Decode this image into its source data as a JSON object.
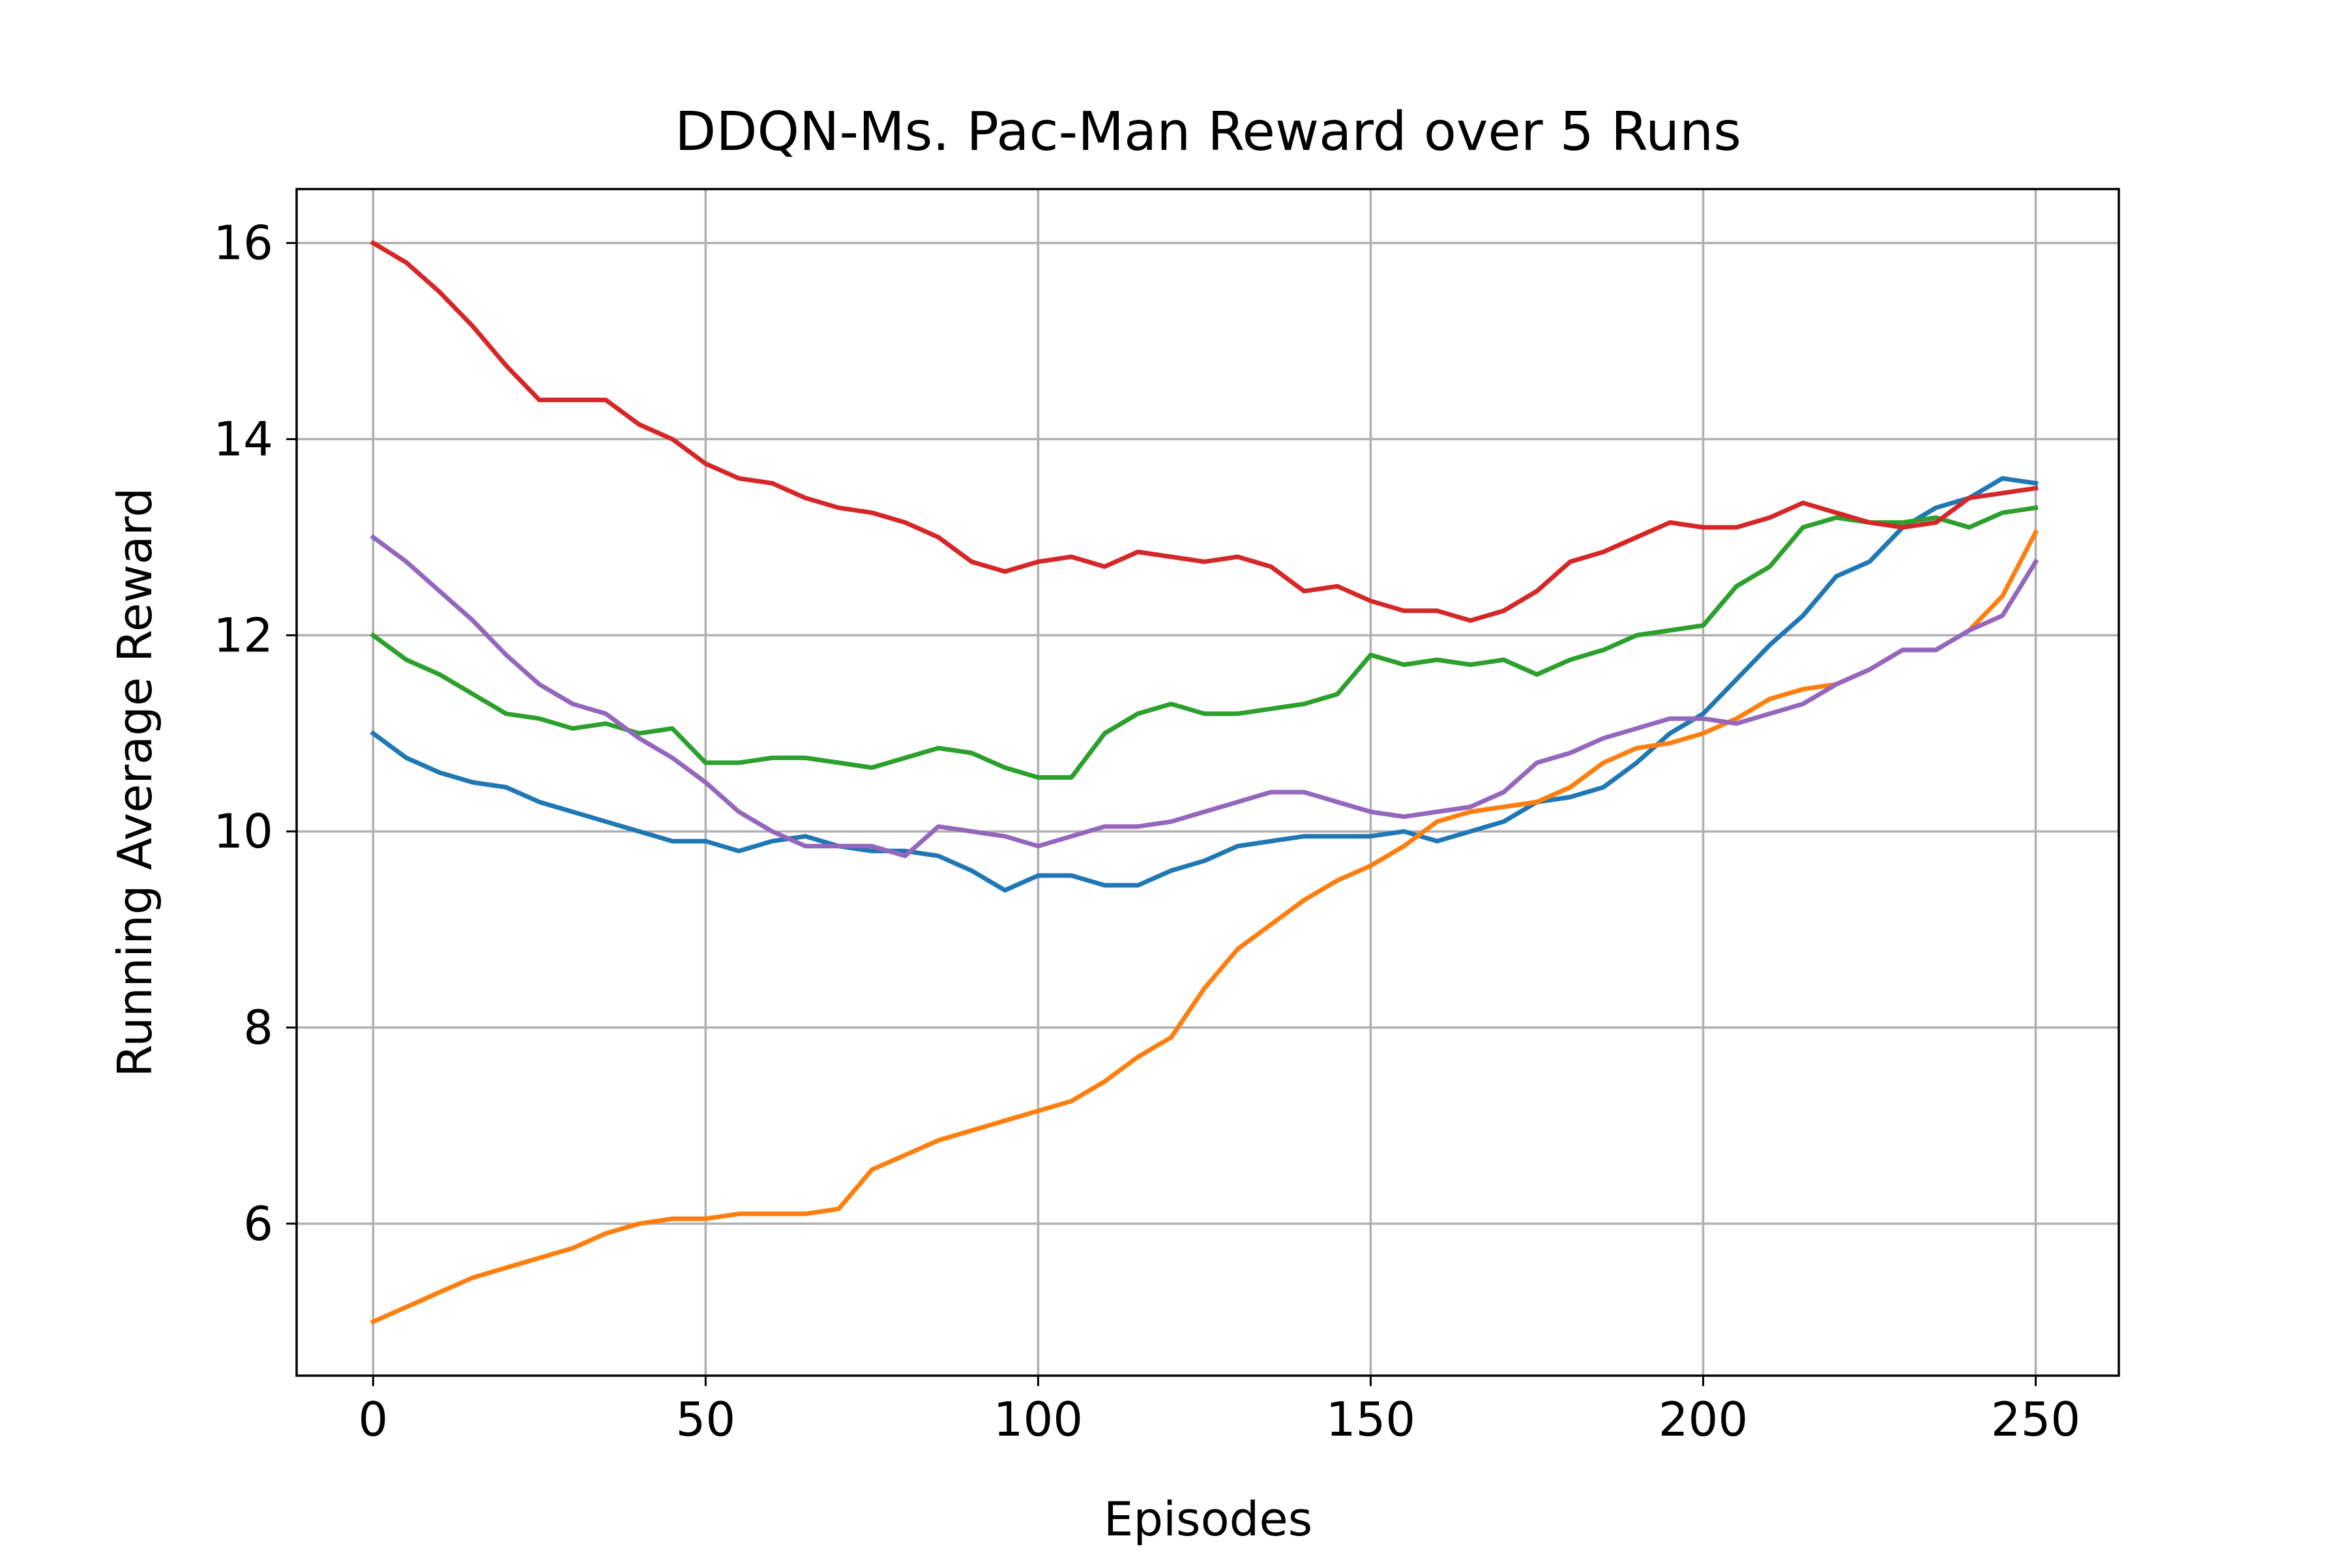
{
  "chart_data": {
    "type": "line",
    "title": "DDQN-Ms. Pac-Man Reward over 5 Runs",
    "xlabel": "Episodes",
    "ylabel": "Running Average Reward",
    "xlim": [
      -11.5,
      262.5
    ],
    "ylim": [
      4.45,
      16.55
    ],
    "xticks": [
      0,
      50,
      100,
      150,
      200,
      250
    ],
    "yticks": [
      6,
      8,
      10,
      12,
      14,
      16
    ],
    "grid": true,
    "legend": "none",
    "series": [
      {
        "color": "#1f77b4",
        "points": [
          [
            0,
            11.0
          ],
          [
            5,
            10.75
          ],
          [
            10,
            10.6
          ],
          [
            15,
            10.5
          ],
          [
            20,
            10.45
          ],
          [
            25,
            10.3
          ],
          [
            30,
            10.2
          ],
          [
            35,
            10.1
          ],
          [
            40,
            10.0
          ],
          [
            45,
            9.9
          ],
          [
            50,
            9.9
          ],
          [
            55,
            9.8
          ],
          [
            60,
            9.9
          ],
          [
            65,
            9.95
          ],
          [
            70,
            9.85
          ],
          [
            75,
            9.8
          ],
          [
            80,
            9.8
          ],
          [
            85,
            9.75
          ],
          [
            90,
            9.6
          ],
          [
            95,
            9.4
          ],
          [
            100,
            9.55
          ],
          [
            105,
            9.55
          ],
          [
            110,
            9.45
          ],
          [
            115,
            9.45
          ],
          [
            120,
            9.6
          ],
          [
            125,
            9.7
          ],
          [
            130,
            9.85
          ],
          [
            135,
            9.9
          ],
          [
            140,
            9.95
          ],
          [
            145,
            9.95
          ],
          [
            150,
            9.95
          ],
          [
            155,
            10.0
          ],
          [
            160,
            9.9
          ],
          [
            165,
            10.0
          ],
          [
            170,
            10.1
          ],
          [
            175,
            10.3
          ],
          [
            180,
            10.35
          ],
          [
            185,
            10.45
          ],
          [
            190,
            10.7
          ],
          [
            195,
            11.0
          ],
          [
            200,
            11.2
          ],
          [
            205,
            11.55
          ],
          [
            210,
            11.9
          ],
          [
            215,
            12.2
          ],
          [
            220,
            12.6
          ],
          [
            225,
            12.75
          ],
          [
            230,
            13.1
          ],
          [
            235,
            13.3
          ],
          [
            240,
            13.4
          ],
          [
            245,
            13.6
          ],
          [
            250,
            13.55
          ]
        ]
      },
      {
        "color": "#ff7f0e",
        "points": [
          [
            0,
            5.0
          ],
          [
            5,
            5.15
          ],
          [
            10,
            5.3
          ],
          [
            15,
            5.45
          ],
          [
            20,
            5.55
          ],
          [
            25,
            5.65
          ],
          [
            30,
            5.75
          ],
          [
            35,
            5.9
          ],
          [
            40,
            6.0
          ],
          [
            45,
            6.05
          ],
          [
            50,
            6.05
          ],
          [
            55,
            6.1
          ],
          [
            60,
            6.1
          ],
          [
            65,
            6.1
          ],
          [
            70,
            6.15
          ],
          [
            75,
            6.55
          ],
          [
            80,
            6.7
          ],
          [
            85,
            6.85
          ],
          [
            90,
            6.95
          ],
          [
            95,
            7.05
          ],
          [
            100,
            7.15
          ],
          [
            105,
            7.25
          ],
          [
            110,
            7.45
          ],
          [
            115,
            7.7
          ],
          [
            120,
            7.9
          ],
          [
            125,
            8.4
          ],
          [
            130,
            8.8
          ],
          [
            135,
            9.05
          ],
          [
            140,
            9.3
          ],
          [
            145,
            9.5
          ],
          [
            150,
            9.65
          ],
          [
            155,
            9.85
          ],
          [
            160,
            10.1
          ],
          [
            165,
            10.2
          ],
          [
            170,
            10.25
          ],
          [
            175,
            10.3
          ],
          [
            180,
            10.45
          ],
          [
            185,
            10.7
          ],
          [
            190,
            10.85
          ],
          [
            195,
            10.9
          ],
          [
            200,
            11.0
          ],
          [
            205,
            11.15
          ],
          [
            210,
            11.35
          ],
          [
            215,
            11.45
          ],
          [
            220,
            11.5
          ],
          [
            225,
            11.65
          ],
          [
            230,
            11.85
          ],
          [
            235,
            11.85
          ],
          [
            240,
            12.05
          ],
          [
            245,
            12.4
          ],
          [
            250,
            13.05
          ]
        ]
      },
      {
        "color": "#2ca02c",
        "points": [
          [
            0,
            12.0
          ],
          [
            5,
            11.75
          ],
          [
            10,
            11.6
          ],
          [
            15,
            11.4
          ],
          [
            20,
            11.2
          ],
          [
            25,
            11.15
          ],
          [
            30,
            11.05
          ],
          [
            35,
            11.1
          ],
          [
            40,
            11.0
          ],
          [
            45,
            11.05
          ],
          [
            50,
            10.7
          ],
          [
            55,
            10.7
          ],
          [
            60,
            10.75
          ],
          [
            65,
            10.75
          ],
          [
            70,
            10.7
          ],
          [
            75,
            10.65
          ],
          [
            80,
            10.75
          ],
          [
            85,
            10.85
          ],
          [
            90,
            10.8
          ],
          [
            95,
            10.65
          ],
          [
            100,
            10.55
          ],
          [
            105,
            10.55
          ],
          [
            110,
            11.0
          ],
          [
            115,
            11.2
          ],
          [
            120,
            11.3
          ],
          [
            125,
            11.2
          ],
          [
            130,
            11.2
          ],
          [
            135,
            11.25
          ],
          [
            140,
            11.3
          ],
          [
            145,
            11.4
          ],
          [
            150,
            11.8
          ],
          [
            155,
            11.7
          ],
          [
            160,
            11.75
          ],
          [
            165,
            11.7
          ],
          [
            170,
            11.75
          ],
          [
            175,
            11.6
          ],
          [
            180,
            11.75
          ],
          [
            185,
            11.85
          ],
          [
            190,
            12.0
          ],
          [
            195,
            12.05
          ],
          [
            200,
            12.1
          ],
          [
            205,
            12.5
          ],
          [
            210,
            12.7
          ],
          [
            215,
            13.1
          ],
          [
            220,
            13.2
          ],
          [
            225,
            13.15
          ],
          [
            230,
            13.15
          ],
          [
            235,
            13.2
          ],
          [
            240,
            13.1
          ],
          [
            245,
            13.25
          ],
          [
            250,
            13.3
          ]
        ]
      },
      {
        "color": "#d62728",
        "points": [
          [
            0,
            16.0
          ],
          [
            5,
            15.8
          ],
          [
            10,
            15.5
          ],
          [
            15,
            15.15
          ],
          [
            20,
            14.75
          ],
          [
            25,
            14.4
          ],
          [
            30,
            14.4
          ],
          [
            35,
            14.4
          ],
          [
            40,
            14.15
          ],
          [
            45,
            14.0
          ],
          [
            50,
            13.75
          ],
          [
            55,
            13.6
          ],
          [
            60,
            13.55
          ],
          [
            65,
            13.4
          ],
          [
            70,
            13.3
          ],
          [
            75,
            13.25
          ],
          [
            80,
            13.15
          ],
          [
            85,
            13.0
          ],
          [
            90,
            12.75
          ],
          [
            95,
            12.65
          ],
          [
            100,
            12.75
          ],
          [
            105,
            12.8
          ],
          [
            110,
            12.7
          ],
          [
            115,
            12.85
          ],
          [
            120,
            12.8
          ],
          [
            125,
            12.75
          ],
          [
            130,
            12.8
          ],
          [
            135,
            12.7
          ],
          [
            140,
            12.45
          ],
          [
            145,
            12.5
          ],
          [
            150,
            12.35
          ],
          [
            155,
            12.25
          ],
          [
            160,
            12.25
          ],
          [
            165,
            12.15
          ],
          [
            170,
            12.25
          ],
          [
            175,
            12.45
          ],
          [
            180,
            12.75
          ],
          [
            185,
            12.85
          ],
          [
            190,
            13.0
          ],
          [
            195,
            13.15
          ],
          [
            200,
            13.1
          ],
          [
            205,
            13.1
          ],
          [
            210,
            13.2
          ],
          [
            215,
            13.35
          ],
          [
            220,
            13.25
          ],
          [
            225,
            13.15
          ],
          [
            230,
            13.1
          ],
          [
            235,
            13.15
          ],
          [
            240,
            13.4
          ],
          [
            245,
            13.45
          ],
          [
            250,
            13.5
          ]
        ]
      },
      {
        "color": "#9467bd",
        "points": [
          [
            0,
            13.0
          ],
          [
            5,
            12.75
          ],
          [
            10,
            12.45
          ],
          [
            15,
            12.15
          ],
          [
            20,
            11.8
          ],
          [
            25,
            11.5
          ],
          [
            30,
            11.3
          ],
          [
            35,
            11.2
          ],
          [
            40,
            10.95
          ],
          [
            45,
            10.75
          ],
          [
            50,
            10.5
          ],
          [
            55,
            10.2
          ],
          [
            60,
            10.0
          ],
          [
            65,
            9.85
          ],
          [
            70,
            9.85
          ],
          [
            75,
            9.85
          ],
          [
            80,
            9.75
          ],
          [
            85,
            10.05
          ],
          [
            90,
            10.0
          ],
          [
            95,
            9.95
          ],
          [
            100,
            9.85
          ],
          [
            105,
            9.95
          ],
          [
            110,
            10.05
          ],
          [
            115,
            10.05
          ],
          [
            120,
            10.1
          ],
          [
            125,
            10.2
          ],
          [
            130,
            10.3
          ],
          [
            135,
            10.4
          ],
          [
            140,
            10.4
          ],
          [
            145,
            10.3
          ],
          [
            150,
            10.2
          ],
          [
            155,
            10.15
          ],
          [
            160,
            10.2
          ],
          [
            165,
            10.25
          ],
          [
            170,
            10.4
          ],
          [
            175,
            10.7
          ],
          [
            180,
            10.8
          ],
          [
            185,
            10.95
          ],
          [
            190,
            11.05
          ],
          [
            195,
            11.15
          ],
          [
            200,
            11.15
          ],
          [
            205,
            11.1
          ],
          [
            210,
            11.2
          ],
          [
            215,
            11.3
          ],
          [
            220,
            11.5
          ],
          [
            225,
            11.65
          ],
          [
            230,
            11.85
          ],
          [
            235,
            11.85
          ],
          [
            240,
            12.05
          ],
          [
            245,
            12.2
          ],
          [
            250,
            12.75
          ]
        ]
      }
    ]
  }
}
